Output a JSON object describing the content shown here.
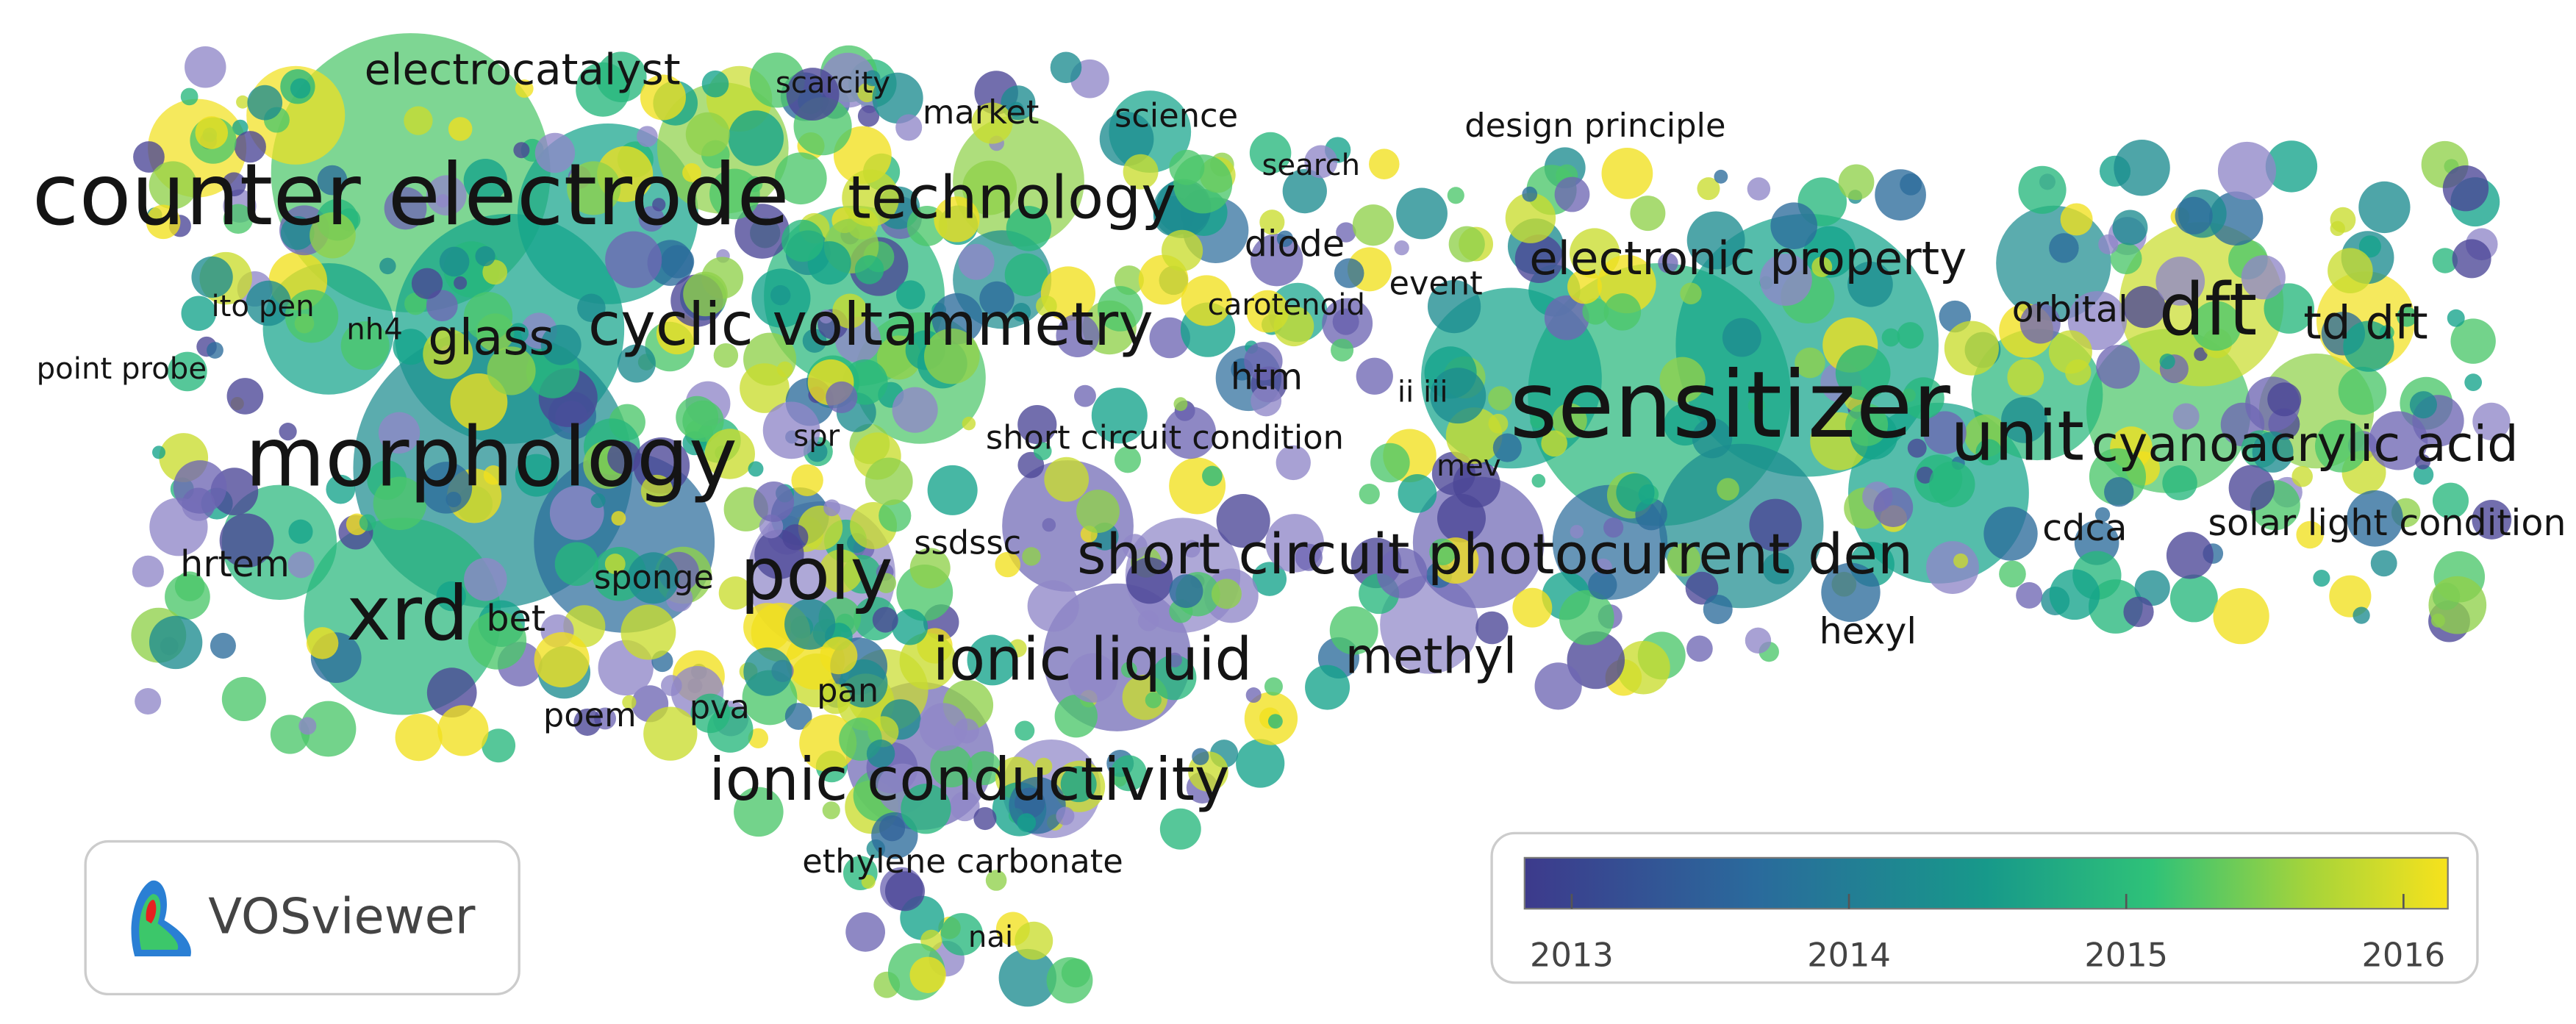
{
  "labels": [
    "counter electrode",
    "electrocatalyst",
    "scarcity",
    "market",
    "science",
    "design principle",
    "search",
    "technology",
    "diode",
    "electronic property",
    "event",
    "carotenoid",
    "ito pen",
    "nh4",
    "glass",
    "cyclic voltammetry",
    "orbital",
    "dft",
    "td dft",
    "point probe",
    "htm",
    "ii iii",
    "sensitizer",
    "morphology",
    "spr",
    "short circuit condition",
    "unit",
    "cyanoacrylic acid",
    "mev",
    "ssdssc",
    "short circuit photocurrent den",
    "cdca",
    "solar light condition",
    "hrtem",
    "poly",
    "sponge",
    "xrd",
    "bet",
    "hexyl",
    "methyl",
    "ionic liquid",
    "poem",
    "pva",
    "pan",
    "ionic conductivity",
    "ethylene carbonate",
    "nai"
  ],
  "logo": "VOSviewer",
  "colorbar": {
    "range": [
      2012.83,
      2016.16
    ],
    "ticks": [
      2013,
      2014,
      2015,
      2016
    ]
  }
}
